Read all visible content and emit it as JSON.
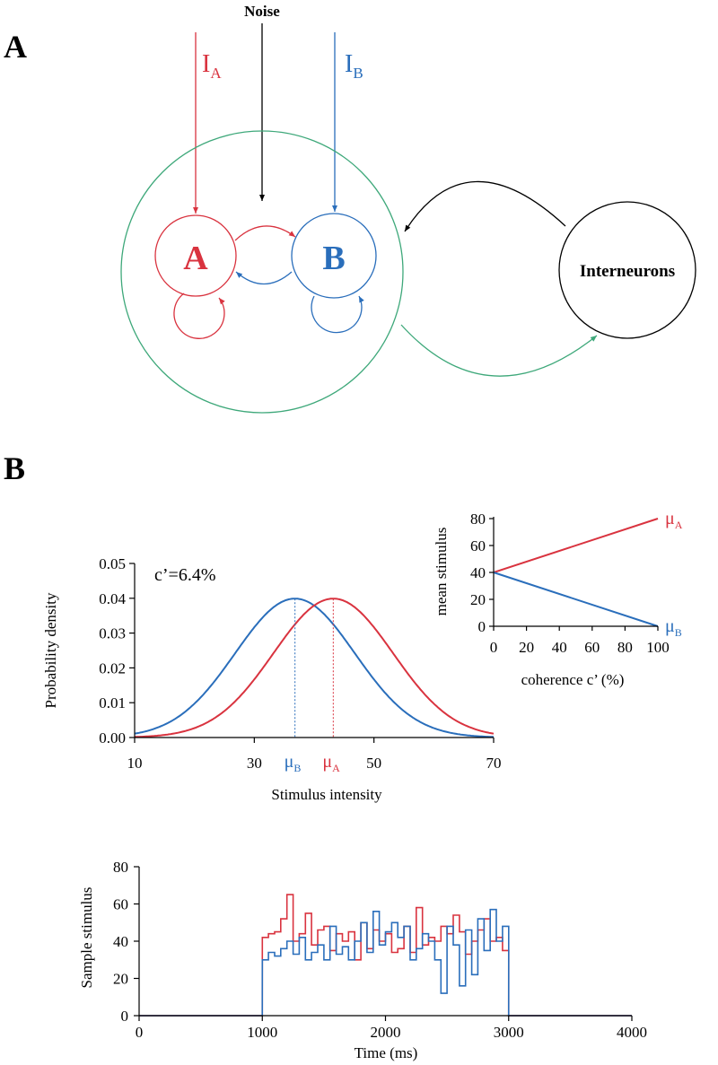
{
  "panel_a": {
    "letter": "A",
    "noise_label": "Noise",
    "input_a": {
      "main": "I",
      "sub": "A"
    },
    "input_b": {
      "main": "I",
      "sub": "B"
    },
    "pop_a_label": "A",
    "pop_b_label": "B",
    "interneurons_label": "Interneurons"
  },
  "panel_b": {
    "letter": "B"
  },
  "colors": {
    "red": "#d9333f",
    "blue": "#2a6ebb",
    "green": "#3ea87a",
    "black": "#000000"
  },
  "chart_data": [
    {
      "type": "line",
      "title": "",
      "annotation": "c’=6.4%",
      "xlabel": "Stimulus intensity",
      "ylabel": "Probability density",
      "xlim": [
        10,
        70
      ],
      "ylim": [
        0,
        0.05
      ],
      "xticks": [
        "10",
        "30",
        "50",
        "70"
      ],
      "yticks": [
        "0.00",
        "0.01",
        "0.02",
        "0.03",
        "0.04",
        "0.05"
      ],
      "markers": [
        {
          "main": "μ",
          "sub": "B",
          "x": 36.8,
          "color": "blue"
        },
        {
          "main": "μ",
          "sub": "A",
          "x": 43.2,
          "color": "red"
        }
      ],
      "series": [
        {
          "color": "blue",
          "mean": 36.8,
          "sd": 10,
          "peak": 0.0399
        },
        {
          "color": "red",
          "mean": 43.2,
          "sd": 10,
          "peak": 0.0399
        }
      ]
    },
    {
      "type": "line",
      "title": "",
      "xlabel": "coherence c’  (%)",
      "ylabel": "mean stimulus",
      "xlim": [
        0,
        100
      ],
      "ylim": [
        0,
        80
      ],
      "xticks": [
        "0",
        "20",
        "40",
        "60",
        "80",
        "100"
      ],
      "yticks": [
        "0",
        "20",
        "40",
        "60",
        "80"
      ],
      "series": [
        {
          "label": {
            "main": "μ",
            "sub": "A"
          },
          "color": "red",
          "x": [
            0,
            100
          ],
          "y": [
            40,
            80
          ]
        },
        {
          "label": {
            "main": "μ",
            "sub": "B"
          },
          "color": "blue",
          "x": [
            0,
            100
          ],
          "y": [
            40,
            0
          ]
        }
      ]
    },
    {
      "type": "line",
      "title": "",
      "xlabel": "Time (ms)",
      "ylabel": "Sample stimulus",
      "xlim": [
        0,
        4000
      ],
      "ylim": [
        0,
        80
      ],
      "xticks": [
        "0",
        "1000",
        "2000",
        "3000",
        "4000"
      ],
      "yticks": [
        "0",
        "20",
        "40",
        "60",
        "80"
      ],
      "step_ms": 50,
      "series": [
        {
          "color": "red",
          "x_start": 1000,
          "x_end": 3000,
          "values": [
            42,
            44,
            45,
            52,
            65,
            40,
            44,
            55,
            38,
            46,
            48,
            35,
            44,
            40,
            45,
            30,
            50,
            36,
            46,
            40,
            44,
            34,
            36,
            48,
            34,
            58,
            38,
            42,
            40,
            48,
            44,
            54,
            45,
            33,
            40,
            46,
            52,
            40,
            42,
            35
          ]
        },
        {
          "color": "blue",
          "x_start": 1000,
          "x_end": 3000,
          "values": [
            30,
            34,
            32,
            36,
            40,
            33,
            42,
            30,
            34,
            38,
            30,
            48,
            33,
            37,
            30,
            40,
            50,
            34,
            56,
            38,
            45,
            50,
            42,
            48,
            30,
            36,
            44,
            40,
            30,
            12,
            48,
            38,
            16,
            46,
            22,
            52,
            35,
            57,
            40,
            48
          ]
        }
      ]
    }
  ]
}
